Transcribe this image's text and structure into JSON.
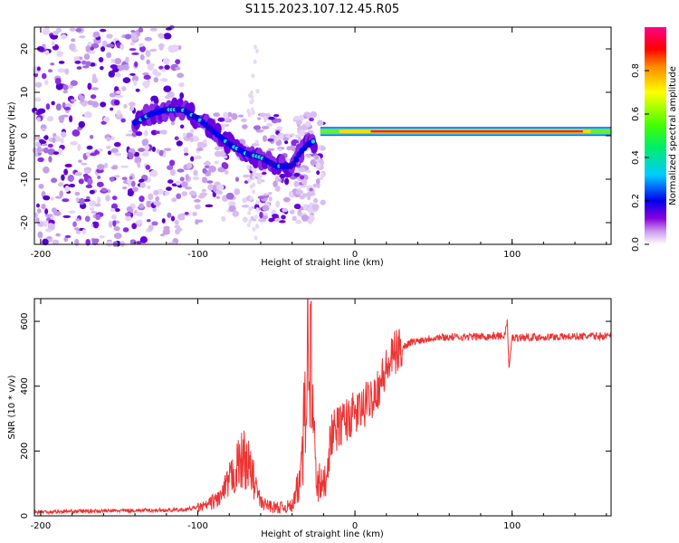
{
  "title": "S115.2023.107.12.45.R05",
  "chart_data": [
    {
      "type": "heatmap",
      "name": "spectrogram",
      "xlabel": "Height of straight line (km)",
      "ylabel": "Frequency (Hz)",
      "xlim": [
        -204,
        163
      ],
      "ylim": [
        -25,
        25
      ],
      "xticks": [
        -200,
        -100,
        0,
        100
      ],
      "yticks": [
        -20,
        -10,
        0,
        10,
        20
      ],
      "ridge": [
        {
          "x": -140,
          "y": 3
        },
        {
          "x": -130,
          "y": 5
        },
        {
          "x": -120,
          "y": 6
        },
        {
          "x": -110,
          "y": 6
        },
        {
          "x": -100,
          "y": 4
        },
        {
          "x": -90,
          "y": 1
        },
        {
          "x": -80,
          "y": -2
        },
        {
          "x": -70,
          "y": -4
        },
        {
          "x": -60,
          "y": -5
        },
        {
          "x": -50,
          "y": -7
        },
        {
          "x": -40,
          "y": -7
        },
        {
          "x": -35,
          "y": -4
        },
        {
          "x": -30,
          "y": -2
        },
        {
          "x": -20,
          "y": 0
        },
        {
          "x": 0,
          "y": 1
        },
        {
          "x": 100,
          "y": 1
        },
        {
          "x": 163,
          "y": 1
        }
      ]
    },
    {
      "type": "line",
      "name": "snr",
      "xlabel": "Height of straight line (km)",
      "ylabel": "SNR (10 * v/v)",
      "xlim": [
        -204,
        163
      ],
      "ylim": [
        0,
        670
      ],
      "xticks": [
        -200,
        -100,
        0,
        100
      ],
      "yticks": [
        0,
        200,
        400,
        600
      ],
      "color": "#ee3333",
      "envelope": [
        {
          "x": -204,
          "y": 12
        },
        {
          "x": -150,
          "y": 16
        },
        {
          "x": -110,
          "y": 18
        },
        {
          "x": -95,
          "y": 30
        },
        {
          "x": -85,
          "y": 60
        },
        {
          "x": -75,
          "y": 150
        },
        {
          "x": -70,
          "y": 180
        },
        {
          "x": -65,
          "y": 120
        },
        {
          "x": -60,
          "y": 40
        },
        {
          "x": -50,
          "y": 25
        },
        {
          "x": -40,
          "y": 30
        },
        {
          "x": -35,
          "y": 100
        },
        {
          "x": -32,
          "y": 400
        },
        {
          "x": -30,
          "y": 650
        },
        {
          "x": -28,
          "y": 450
        },
        {
          "x": -25,
          "y": 120
        },
        {
          "x": -20,
          "y": 80
        },
        {
          "x": -15,
          "y": 250
        },
        {
          "x": -5,
          "y": 300
        },
        {
          "x": 5,
          "y": 330
        },
        {
          "x": 15,
          "y": 400
        },
        {
          "x": 25,
          "y": 500
        },
        {
          "x": 35,
          "y": 535
        },
        {
          "x": 50,
          "y": 550
        },
        {
          "x": 95,
          "y": 555
        },
        {
          "x": 97,
          "y": 600
        },
        {
          "x": 98,
          "y": 450
        },
        {
          "x": 100,
          "y": 550
        },
        {
          "x": 163,
          "y": 555
        }
      ]
    },
    {
      "type": "colorbar",
      "name": "amplitude-scale",
      "label": "Normalized spectral amplitude",
      "range": [
        0,
        1
      ],
      "ticks": [
        "0.0",
        "0.2",
        "0.4",
        "0.6",
        "0.8"
      ]
    }
  ]
}
